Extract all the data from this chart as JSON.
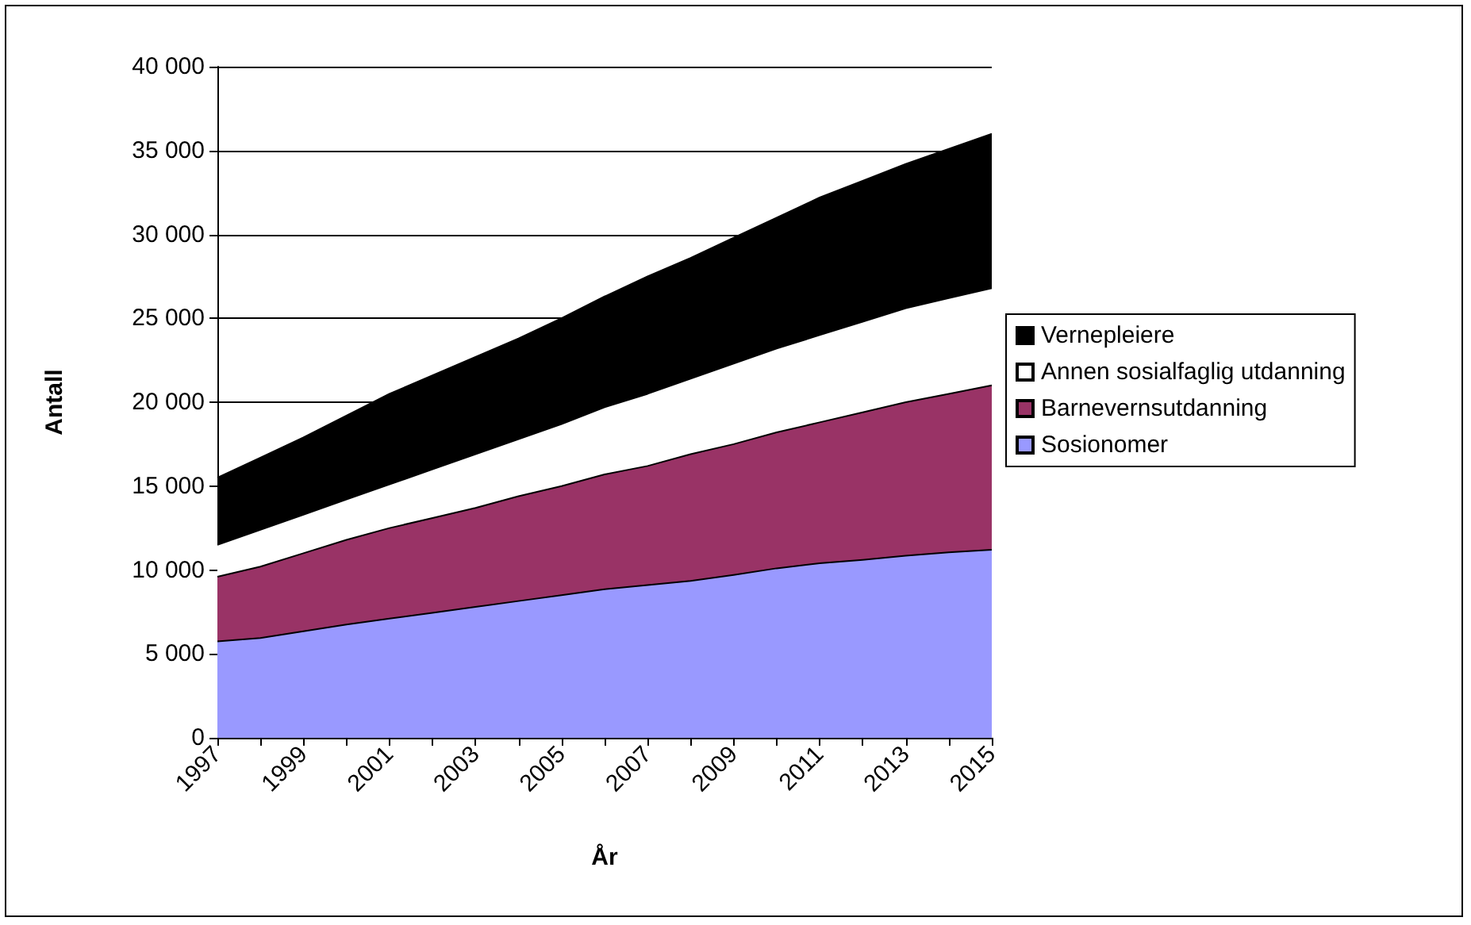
{
  "chart_data": {
    "type": "area",
    "xlabel": "År",
    "ylabel": "Antall",
    "categories": [
      "1997",
      null,
      "1999",
      null,
      "2001",
      null,
      "2003",
      null,
      "2005",
      null,
      "2007",
      null,
      "2009",
      null,
      "2011",
      null,
      "2013",
      null,
      "2015"
    ],
    "stacked": true,
    "series": [
      {
        "name": "Sosionomer",
        "color": "#9999ff",
        "values": [
          5750,
          5950,
          6350,
          6750,
          7100,
          7450,
          7800,
          8150,
          8500,
          8850,
          9100,
          9350,
          9700,
          10100,
          10400,
          10600,
          10850,
          11050,
          11200
        ]
      },
      {
        "name": "Barnevernsutdanning",
        "color": "#993366",
        "values": [
          3850,
          4250,
          4650,
          5050,
          5400,
          5650,
          5900,
          6250,
          6500,
          6850,
          7100,
          7550,
          7800,
          8100,
          8400,
          8800,
          9150,
          9450,
          9800
        ]
      },
      {
        "name": "Annen sosialfaglig utdanning",
        "color": "#ffffff",
        "values": [
          1900,
          2200,
          2300,
          2400,
          2600,
          2900,
          3200,
          3400,
          3700,
          4000,
          4300,
          4500,
          4800,
          5000,
          5200,
          5400,
          5600,
          5700,
          5800
        ]
      },
      {
        "name": "Vernepleiere",
        "color": "#000000",
        "values": [
          4000,
          4300,
          4600,
          5000,
          5400,
          5600,
          5800,
          6000,
          6300,
          6600,
          7000,
          7200,
          7500,
          7800,
          8200,
          8400,
          8600,
          8900,
          9200
        ]
      }
    ],
    "ylim": [
      0,
      40000
    ],
    "yticks": [
      0,
      {
        "value": 5000,
        "label": "5 000"
      },
      {
        "value": 10000,
        "label": "10 000"
      },
      {
        "value": 15000,
        "label": "15 000"
      },
      {
        "value": 20000,
        "label": "20 000"
      },
      {
        "value": 25000,
        "label": "25 000"
      },
      {
        "value": 30000,
        "label": "30 000"
      },
      {
        "value": 35000,
        "label": "35 000"
      },
      {
        "value": 40000,
        "label": "40 000"
      }
    ],
    "grid": "y",
    "legend": "right"
  }
}
